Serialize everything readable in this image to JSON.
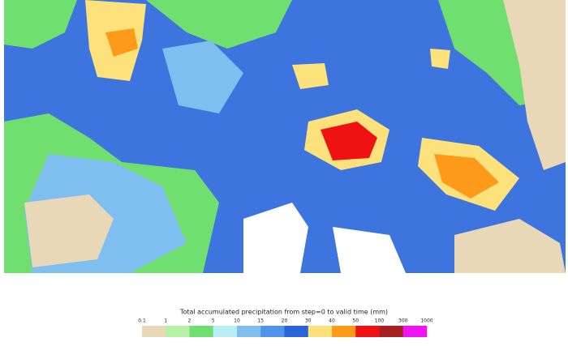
{
  "colorbar": {
    "title": "Total accumulated precipitation from step=0 to valid time (mm)",
    "ticks": [
      0.1,
      1,
      2,
      5,
      10,
      15,
      20,
      30,
      40,
      50,
      100,
      300,
      1000
    ],
    "colors": [
      "#e8d8b8",
      "#b6f2a6",
      "#6fe06f",
      "#b8eef4",
      "#7fbff0",
      "#4f94ea",
      "#2a62d8",
      "#fde17a",
      "#fd9a1a",
      "#ee1212",
      "#a82020",
      "#f014f0"
    ]
  }
}
